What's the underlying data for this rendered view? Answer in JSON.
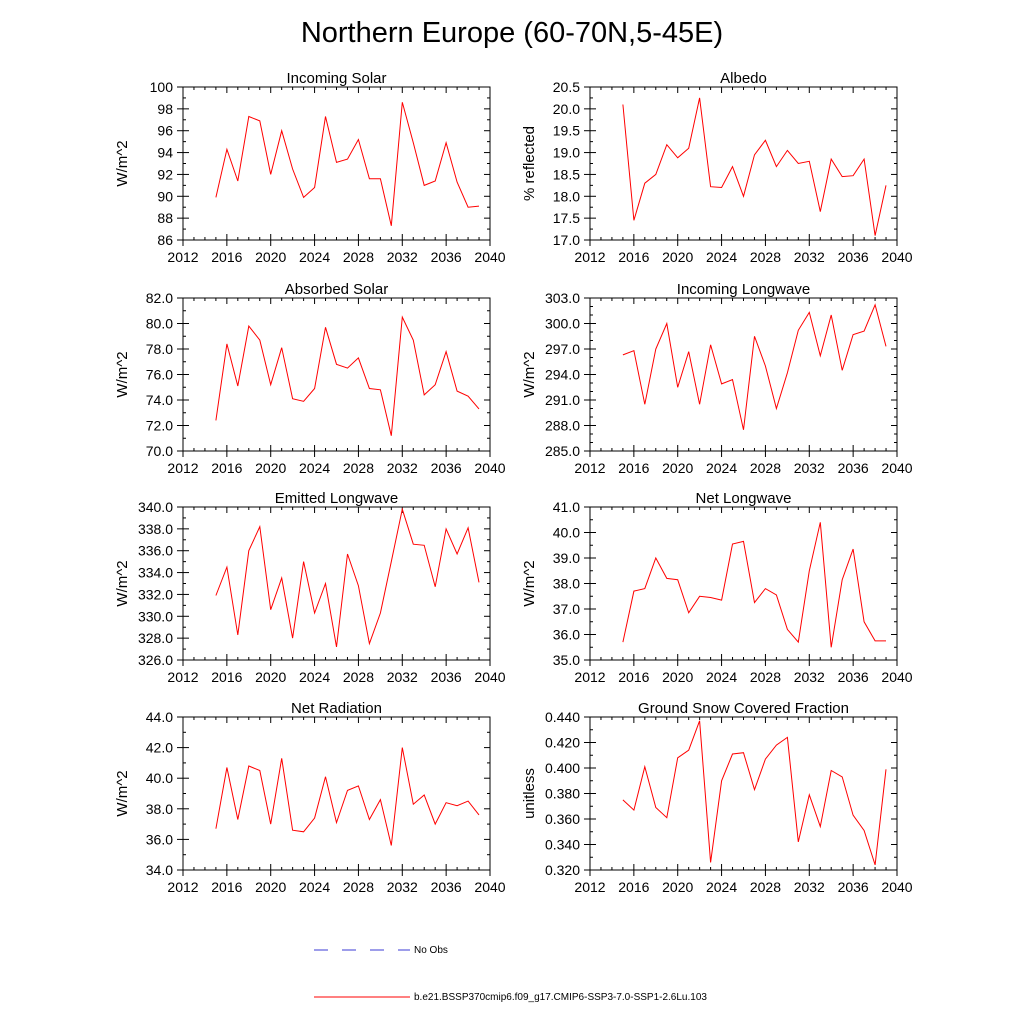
{
  "figure": {
    "title": "Northern Europe (60-70N,5-45E)"
  },
  "legend": [
    {
      "label": "No Obs",
      "color": "#3b3bd4",
      "style": "dashed"
    },
    {
      "label": "b.e21.BSSP370cmip6.f09_g17.CMIP6-SSP3-7.0-SSP1-2.6Lu.103",
      "color": "#ff0000",
      "style": "solid"
    }
  ],
  "chart_data": [
    {
      "type": "line",
      "title": "Incoming Solar",
      "ylabel": "W/m^2",
      "xlim": [
        2012,
        2040
      ],
      "xticks": [
        "2012",
        "2016",
        "2020",
        "2024",
        "2028",
        "2032",
        "2036",
        "2040"
      ],
      "ylim": [
        86,
        100
      ],
      "yticks": [
        "86",
        "88",
        "90",
        "92",
        "94",
        "96",
        "98",
        "100"
      ],
      "yminor": 1,
      "x": [
        2015,
        2016,
        2017,
        2018,
        2019,
        2020,
        2021,
        2022,
        2023,
        2024,
        2025,
        2026,
        2027,
        2028,
        2029,
        2030,
        2031,
        2032,
        2033,
        2034,
        2035,
        2036,
        2037,
        2038,
        2039
      ],
      "series": [
        {
          "name": "b.e21.BSSP370cmip6.f09_g17.CMIP6-SSP3-7.0-SSP1-2.6Lu.103",
          "color": "#ff0000",
          "values": [
            89.9,
            94.3,
            91.4,
            97.3,
            96.9,
            92.0,
            96.0,
            92.5,
            89.9,
            90.8,
            97.3,
            93.1,
            93.4,
            95.2,
            91.6,
            91.6,
            87.3,
            98.6,
            94.9,
            91.0,
            91.4,
            94.9,
            91.3,
            89.0,
            89.1
          ]
        }
      ]
    },
    {
      "type": "line",
      "title": "Albedo",
      "ylabel": "% reflected",
      "xlim": [
        2012,
        2040
      ],
      "xticks": [
        "2012",
        "2016",
        "2020",
        "2024",
        "2028",
        "2032",
        "2036",
        "2040"
      ],
      "ylim": [
        17.0,
        20.5
      ],
      "yticks": [
        "17.0",
        "17.5",
        "18.0",
        "18.5",
        "19.0",
        "19.5",
        "20.0",
        "20.5"
      ],
      "yminor": 0.25,
      "x": [
        2015,
        2016,
        2017,
        2018,
        2019,
        2020,
        2021,
        2022,
        2023,
        2024,
        2025,
        2026,
        2027,
        2028,
        2029,
        2030,
        2031,
        2032,
        2033,
        2034,
        2035,
        2036,
        2037,
        2038,
        2039
      ],
      "series": [
        {
          "name": "b.e21.BSSP370cmip6.f09_g17.CMIP6-SSP3-7.0-SSP1-2.6Lu.103",
          "color": "#ff0000",
          "values": [
            20.1,
            17.45,
            18.3,
            18.5,
            19.18,
            18.88,
            19.1,
            20.25,
            18.22,
            18.2,
            18.68,
            18.0,
            18.95,
            19.28,
            18.68,
            19.05,
            18.75,
            18.8,
            17.65,
            18.85,
            18.45,
            18.47,
            18.85,
            17.1,
            18.25
          ]
        }
      ]
    },
    {
      "type": "line",
      "title": "Absorbed Solar",
      "ylabel": "W/m^2",
      "xlim": [
        2012,
        2040
      ],
      "xticks": [
        "2012",
        "2016",
        "2020",
        "2024",
        "2028",
        "2032",
        "2036",
        "2040"
      ],
      "ylim": [
        70.0,
        82.0
      ],
      "yticks": [
        "70.0",
        "72.0",
        "74.0",
        "76.0",
        "78.0",
        "80.0",
        "82.0"
      ],
      "yminor": 1,
      "x": [
        2015,
        2016,
        2017,
        2018,
        2019,
        2020,
        2021,
        2022,
        2023,
        2024,
        2025,
        2026,
        2027,
        2028,
        2029,
        2030,
        2031,
        2032,
        2033,
        2034,
        2035,
        2036,
        2037,
        2038,
        2039
      ],
      "series": [
        {
          "name": "b.e21.BSSP370cmip6.f09_g17.CMIP6-SSP3-7.0-SSP1-2.6Lu.103",
          "color": "#ff0000",
          "values": [
            72.4,
            78.4,
            75.1,
            79.8,
            78.7,
            75.2,
            78.1,
            74.1,
            73.9,
            74.9,
            79.7,
            76.8,
            76.5,
            77.3,
            74.9,
            74.8,
            71.2,
            80.5,
            78.7,
            74.4,
            75.2,
            77.8,
            74.7,
            74.3,
            73.3
          ]
        }
      ]
    },
    {
      "type": "line",
      "title": "Incoming Longwave",
      "ylabel": "W/m^2",
      "xlim": [
        2012,
        2040
      ],
      "xticks": [
        "2012",
        "2016",
        "2020",
        "2024",
        "2028",
        "2032",
        "2036",
        "2040"
      ],
      "ylim": [
        285.0,
        303.0
      ],
      "yticks": [
        "285.0",
        "288.0",
        "291.0",
        "294.0",
        "297.0",
        "300.0",
        "303.0"
      ],
      "yminor": 1,
      "x": [
        2015,
        2016,
        2017,
        2018,
        2019,
        2020,
        2021,
        2022,
        2023,
        2024,
        2025,
        2026,
        2027,
        2028,
        2029,
        2030,
        2031,
        2032,
        2033,
        2034,
        2035,
        2036,
        2037,
        2038,
        2039
      ],
      "series": [
        {
          "name": "b.e21.BSSP370cmip6.f09_g17.CMIP6-SSP3-7.0-SSP1-2.6Lu.103",
          "color": "#ff0000",
          "values": [
            296.3,
            296.8,
            290.5,
            297.0,
            300.0,
            292.5,
            296.7,
            290.5,
            297.5,
            292.9,
            293.4,
            287.5,
            298.5,
            295.0,
            290.0,
            294.2,
            299.2,
            301.3,
            296.2,
            301.0,
            294.5,
            298.7,
            299.1,
            302.2,
            297.3
          ]
        }
      ]
    },
    {
      "type": "line",
      "title": "Emitted Longwave",
      "ylabel": "W/m^2",
      "xlim": [
        2012,
        2040
      ],
      "xticks": [
        "2012",
        "2016",
        "2020",
        "2024",
        "2028",
        "2032",
        "2036",
        "2040"
      ],
      "ylim": [
        326.0,
        340.0
      ],
      "yticks": [
        "326.0",
        "328.0",
        "330.0",
        "332.0",
        "334.0",
        "336.0",
        "338.0",
        "340.0"
      ],
      "yminor": 1,
      "x": [
        2015,
        2016,
        2017,
        2018,
        2019,
        2020,
        2021,
        2022,
        2023,
        2024,
        2025,
        2026,
        2027,
        2028,
        2029,
        2030,
        2031,
        2032,
        2033,
        2034,
        2035,
        2036,
        2037,
        2038,
        2039
      ],
      "series": [
        {
          "name": "b.e21.BSSP370cmip6.f09_g17.CMIP6-SSP3-7.0-SSP1-2.6Lu.103",
          "color": "#ff0000",
          "values": [
            331.9,
            334.5,
            328.3,
            336.0,
            338.2,
            330.6,
            333.5,
            328.0,
            335.0,
            330.3,
            333.0,
            327.2,
            335.7,
            332.8,
            327.5,
            330.3,
            335.0,
            339.8,
            336.6,
            336.5,
            332.7,
            338.0,
            335.7,
            338.1,
            333.1
          ]
        }
      ]
    },
    {
      "type": "line",
      "title": "Net Longwave",
      "ylabel": "W/m^2",
      "xlim": [
        2012,
        2040
      ],
      "xticks": [
        "2012",
        "2016",
        "2020",
        "2024",
        "2028",
        "2032",
        "2036",
        "2040"
      ],
      "ylim": [
        35.0,
        41.0
      ],
      "yticks": [
        "35.0",
        "36.0",
        "37.0",
        "38.0",
        "39.0",
        "40.0",
        "41.0"
      ],
      "yminor": 0.5,
      "x": [
        2015,
        2016,
        2017,
        2018,
        2019,
        2020,
        2021,
        2022,
        2023,
        2024,
        2025,
        2026,
        2027,
        2028,
        2029,
        2030,
        2031,
        2032,
        2033,
        2034,
        2035,
        2036,
        2037,
        2038,
        2039
      ],
      "series": [
        {
          "name": "b.e21.BSSP370cmip6.f09_g17.CMIP6-SSP3-7.0-SSP1-2.6Lu.103",
          "color": "#ff0000",
          "values": [
            35.7,
            37.7,
            37.8,
            39.0,
            38.2,
            38.15,
            36.85,
            37.5,
            37.45,
            37.35,
            39.55,
            39.65,
            37.25,
            37.8,
            37.55,
            36.2,
            35.7,
            38.5,
            40.4,
            35.5,
            38.15,
            39.35,
            36.5,
            35.75,
            35.75
          ]
        }
      ]
    },
    {
      "type": "line",
      "title": "Net Radiation",
      "ylabel": "W/m^2",
      "xlim": [
        2012,
        2040
      ],
      "xticks": [
        "2012",
        "2016",
        "2020",
        "2024",
        "2028",
        "2032",
        "2036",
        "2040"
      ],
      "ylim": [
        34.0,
        44.0
      ],
      "yticks": [
        "34.0",
        "36.0",
        "38.0",
        "40.0",
        "42.0",
        "44.0"
      ],
      "yminor": 1,
      "x": [
        2015,
        2016,
        2017,
        2018,
        2019,
        2020,
        2021,
        2022,
        2023,
        2024,
        2025,
        2026,
        2027,
        2028,
        2029,
        2030,
        2031,
        2032,
        2033,
        2034,
        2035,
        2036,
        2037,
        2038,
        2039
      ],
      "series": [
        {
          "name": "b.e21.BSSP370cmip6.f09_g17.CMIP6-SSP3-7.0-SSP1-2.6Lu.103",
          "color": "#ff0000",
          "values": [
            36.7,
            40.7,
            37.3,
            40.8,
            40.5,
            37.0,
            41.3,
            36.6,
            36.5,
            37.4,
            40.1,
            37.1,
            39.2,
            39.5,
            37.3,
            38.6,
            35.6,
            42.0,
            38.3,
            38.9,
            37.0,
            38.4,
            38.2,
            38.5,
            37.6
          ]
        }
      ]
    },
    {
      "type": "line",
      "title": "Ground Snow Covered Fraction",
      "ylabel": "unitless",
      "xlim": [
        2012,
        2040
      ],
      "xticks": [
        "2012",
        "2016",
        "2020",
        "2024",
        "2028",
        "2032",
        "2036",
        "2040"
      ],
      "ylim": [
        0.32,
        0.44
      ],
      "yticks": [
        "0.320",
        "0.340",
        "0.360",
        "0.380",
        "0.400",
        "0.420",
        "0.440"
      ],
      "yminor": 0.01,
      "x": [
        2015,
        2016,
        2017,
        2018,
        2019,
        2020,
        2021,
        2022,
        2023,
        2024,
        2025,
        2026,
        2027,
        2028,
        2029,
        2030,
        2031,
        2032,
        2033,
        2034,
        2035,
        2036,
        2037,
        2038,
        2039
      ],
      "series": [
        {
          "name": "b.e21.BSSP370cmip6.f09_g17.CMIP6-SSP3-7.0-SSP1-2.6Lu.103",
          "color": "#ff0000",
          "values": [
            0.375,
            0.367,
            0.401,
            0.369,
            0.361,
            0.408,
            0.414,
            0.437,
            0.326,
            0.39,
            0.411,
            0.412,
            0.383,
            0.407,
            0.418,
            0.424,
            0.342,
            0.379,
            0.354,
            0.398,
            0.393,
            0.363,
            0.351,
            0.324,
            0.399
          ]
        }
      ]
    }
  ]
}
